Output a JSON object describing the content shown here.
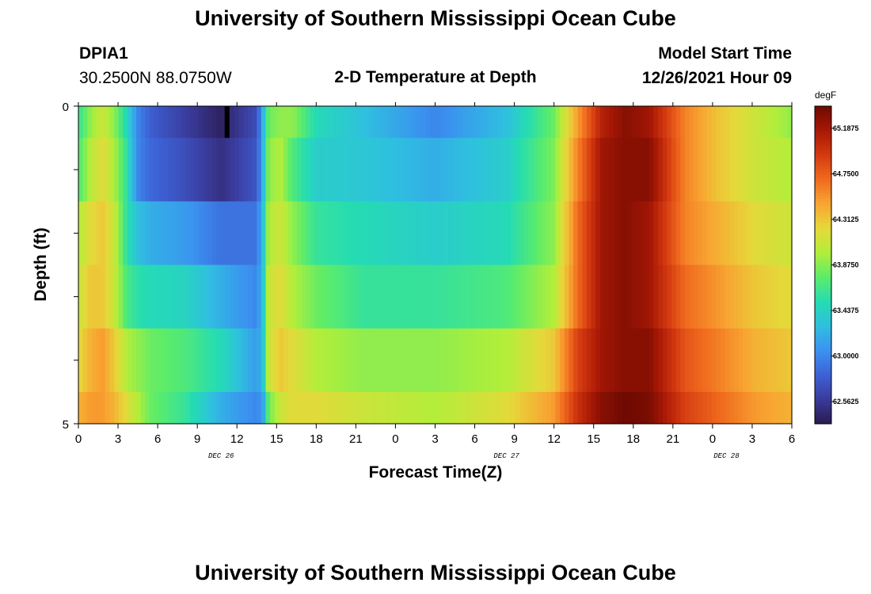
{
  "header": {
    "title": "University of Southern Mississippi Ocean Cube",
    "station": "DPIA1",
    "coords": "30.2500N  88.0750W",
    "subtitle": "2-D Temperature at Depth",
    "start_label": "Model Start Time",
    "start_value": "12/26/2021 Hour 09"
  },
  "footer": {
    "title": "University of Southern Mississippi Ocean Cube"
  },
  "chart_data": {
    "type": "heatmap",
    "xlabel": "Forecast Time(Z)",
    "ylabel": "Depth (ft)",
    "ylim": [
      0,
      5
    ],
    "y_ticks": [
      "0",
      "5"
    ],
    "x_ticks": [
      "0",
      "3",
      "6",
      "9",
      "12",
      "15",
      "18",
      "21",
      "0",
      "3",
      "6",
      "9",
      "12",
      "15",
      "18",
      "21",
      "0",
      "3",
      "6"
    ],
    "date_labels": [
      "DEC 26",
      "DEC 27",
      "DEC 28"
    ],
    "colorbar": {
      "unit": "degF",
      "ticks": [
        "65.1875",
        "64.7500",
        "64.3125",
        "63.8750",
        "63.4375",
        "63.0000",
        "62.5625"
      ],
      "range": [
        62.35,
        65.4
      ],
      "colors": [
        "#2a1b4f",
        "#3a3b9c",
        "#3d62d6",
        "#3b92f0",
        "#2fbfe0",
        "#25dcb2",
        "#5cec6a",
        "#b2ee3a",
        "#e6d83a",
        "#f8a532",
        "#f06a1e",
        "#d43a10",
        "#a81805",
        "#6e0a02"
      ]
    },
    "rows": [
      {
        "depth": [
          0,
          0.5
        ],
        "x": [
          0,
          1,
          2,
          3,
          4,
          5,
          6,
          9,
          12,
          15,
          15.5,
          16,
          17,
          18,
          20,
          24,
          30,
          36,
          40,
          42,
          44,
          46,
          48,
          51,
          54,
          57,
          60
        ],
        "values": [
          63.6,
          63.9,
          64.1,
          63.9,
          63.5,
          63.0,
          62.8,
          62.6,
          62.4,
          62.7,
          63.2,
          63.8,
          63.9,
          63.9,
          63.5,
          63.3,
          63.0,
          63.3,
          63.8,
          64.5,
          65.1,
          65.3,
          65.2,
          64.6,
          64.3,
          64.1,
          63.9
        ]
      },
      {
        "depth": [
          0.5,
          1.5
        ],
        "x": [
          0,
          1,
          2,
          3,
          4,
          5,
          6,
          9,
          12,
          15,
          15.5,
          16,
          17,
          18,
          20,
          24,
          30,
          36,
          40,
          42,
          44,
          46,
          48,
          51,
          54,
          57,
          60
        ],
        "values": [
          63.7,
          64.0,
          64.2,
          64.0,
          63.6,
          63.0,
          62.85,
          62.7,
          62.5,
          62.75,
          63.2,
          63.9,
          64.0,
          63.7,
          63.4,
          63.35,
          63.2,
          63.4,
          63.85,
          64.6,
          65.2,
          65.3,
          65.3,
          64.6,
          64.3,
          64.1,
          64.0
        ]
      },
      {
        "depth": [
          1.5,
          2.5
        ],
        "x": [
          0,
          1,
          2,
          3,
          4,
          5,
          6,
          9,
          12,
          15,
          15.5,
          16,
          17,
          18,
          20,
          24,
          30,
          36,
          40,
          42,
          44,
          46,
          48,
          51,
          54,
          57,
          60
        ],
        "values": [
          64.0,
          64.2,
          64.3,
          64.1,
          63.6,
          63.3,
          63.2,
          63.1,
          62.9,
          62.9,
          63.3,
          64.0,
          64.1,
          63.9,
          63.6,
          63.5,
          63.4,
          63.5,
          63.9,
          64.7,
          65.2,
          65.3,
          65.2,
          64.6,
          64.4,
          64.2,
          64.1
        ]
      },
      {
        "depth": [
          2.5,
          3.5
        ],
        "x": [
          0,
          1,
          2,
          3,
          4,
          5,
          6,
          9,
          12,
          15,
          15.5,
          16,
          17,
          18,
          20,
          24,
          30,
          36,
          40,
          42,
          44,
          46,
          48,
          51,
          54,
          57,
          60
        ],
        "values": [
          64.1,
          64.3,
          64.3,
          64.1,
          63.7,
          63.55,
          63.5,
          63.45,
          63.2,
          63.0,
          63.3,
          64.1,
          64.2,
          64.0,
          63.8,
          63.6,
          63.6,
          63.7,
          64.0,
          64.7,
          65.2,
          65.3,
          65.2,
          64.7,
          64.5,
          64.3,
          64.2
        ]
      },
      {
        "depth": [
          3.5,
          4.5
        ],
        "x": [
          0,
          1,
          2,
          3,
          4,
          5,
          6,
          9,
          12,
          15,
          15.5,
          16,
          17,
          18,
          20,
          24,
          30,
          36,
          40,
          42,
          44,
          46,
          48,
          51,
          54,
          57,
          60
        ],
        "values": [
          64.2,
          64.4,
          64.5,
          64.3,
          64.0,
          63.9,
          63.8,
          63.7,
          63.5,
          63.1,
          63.3,
          64.1,
          64.3,
          64.2,
          64.0,
          63.9,
          63.9,
          64.0,
          64.3,
          64.9,
          65.2,
          65.3,
          65.3,
          64.8,
          64.6,
          64.4,
          64.3
        ]
      },
      {
        "depth": [
          4.5,
          5
        ],
        "x": [
          0,
          1,
          2,
          3,
          4,
          5,
          6,
          9,
          12,
          15,
          15.5,
          16,
          17,
          18,
          20,
          24,
          30,
          36,
          40,
          42,
          44,
          46,
          48,
          51,
          54,
          57,
          60
        ],
        "values": [
          64.4,
          64.5,
          64.5,
          64.4,
          64.2,
          64.0,
          63.8,
          63.6,
          63.2,
          63.0,
          63.1,
          63.8,
          64.1,
          64.2,
          64.2,
          64.1,
          64.0,
          64.2,
          64.5,
          65.0,
          65.3,
          65.4,
          65.35,
          64.9,
          64.7,
          64.5,
          64.4
        ]
      }
    ],
    "missing_cell": {
      "x": [
        12.3,
        12.7
      ],
      "depth": [
        0,
        0.5
      ],
      "color": "#000000"
    }
  }
}
